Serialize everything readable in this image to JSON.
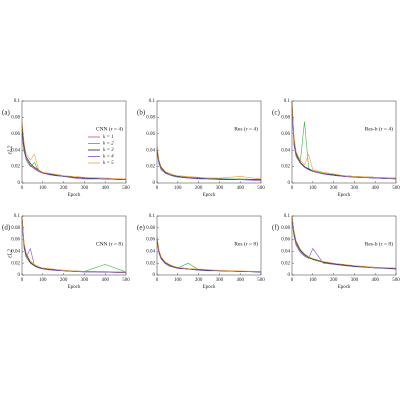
{
  "chart_data": [
    {
      "type": "line",
      "panel_label": "(a)",
      "title": "CNN (r = 4)",
      "x_label": "Epoch",
      "y_label": "εL2",
      "legend": true,
      "x": [
        0,
        10,
        20,
        40,
        60,
        80,
        100,
        150,
        200,
        250,
        300,
        400,
        500
      ],
      "xlim": [
        0,
        500
      ],
      "ylim": [
        0,
        0.1
      ],
      "xticks": [
        0,
        100,
        200,
        300,
        400,
        500
      ],
      "yticks": [
        0,
        0.02,
        0.04,
        0.06,
        0.08,
        0.1
      ],
      "series": [
        {
          "name": "k = 1",
          "color": "#e0457b",
          "values": [
            0.065,
            0.04,
            0.03,
            0.022,
            0.018,
            0.015,
            0.013,
            0.01,
            0.008,
            0.007,
            0.006,
            0.005,
            0.004
          ]
        },
        {
          "name": "k = 2",
          "color": "#3cb34a",
          "values": [
            0.06,
            0.042,
            0.028,
            0.02,
            0.025,
            0.014,
            0.012,
            0.011,
            0.009,
            0.007,
            0.006,
            0.005,
            0.004
          ]
        },
        {
          "name": "k = 3",
          "color": "#222222",
          "values": [
            0.07,
            0.045,
            0.032,
            0.024,
            0.019,
            0.016,
            0.012,
            0.01,
            0.008,
            0.007,
            0.006,
            0.005,
            0.004
          ]
        },
        {
          "name": "k = 4",
          "color": "#7b4fc9",
          "values": [
            0.058,
            0.038,
            0.03,
            0.021,
            0.017,
            0.014,
            0.012,
            0.009,
            0.008,
            0.006,
            0.005,
            0.005,
            0.004
          ]
        },
        {
          "name": "k = 5",
          "color": "#f39c3a",
          "values": [
            0.075,
            0.05,
            0.035,
            0.028,
            0.035,
            0.016,
            0.013,
            0.011,
            0.009,
            0.008,
            0.007,
            0.006,
            0.005
          ]
        }
      ]
    },
    {
      "type": "line",
      "panel_label": "(b)",
      "title": "Res (r = 4)",
      "x_label": "Epoch",
      "x": [
        0,
        10,
        20,
        40,
        60,
        80,
        100,
        150,
        200,
        250,
        300,
        400,
        500
      ],
      "xlim": [
        0,
        500
      ],
      "ylim": [
        0,
        0.1
      ],
      "xticks": [
        0,
        100,
        200,
        300,
        400,
        500
      ],
      "yticks": [
        0,
        0.02,
        0.04,
        0.06,
        0.08,
        0.1
      ],
      "series": [
        {
          "color": "#e0457b",
          "values": [
            0.04,
            0.025,
            0.018,
            0.012,
            0.01,
            0.009,
            0.008,
            0.007,
            0.006,
            0.005,
            0.005,
            0.004,
            0.004
          ]
        },
        {
          "color": "#3cb34a",
          "values": [
            0.038,
            0.024,
            0.017,
            0.013,
            0.011,
            0.009,
            0.008,
            0.007,
            0.006,
            0.006,
            0.005,
            0.005,
            0.004
          ]
        },
        {
          "color": "#222222",
          "values": [
            0.042,
            0.026,
            0.019,
            0.013,
            0.01,
            0.009,
            0.008,
            0.006,
            0.006,
            0.005,
            0.005,
            0.004,
            0.004
          ]
        },
        {
          "color": "#7b4fc9",
          "values": [
            0.036,
            0.023,
            0.016,
            0.012,
            0.01,
            0.008,
            0.007,
            0.006,
            0.005,
            0.005,
            0.004,
            0.004,
            0.003
          ]
        },
        {
          "color": "#f39c3a",
          "values": [
            0.045,
            0.028,
            0.02,
            0.014,
            0.012,
            0.01,
            0.009,
            0.008,
            0.007,
            0.006,
            0.006,
            0.008,
            0.005
          ]
        }
      ]
    },
    {
      "type": "line",
      "panel_label": "(c)",
      "title": "Res-b (r = 4)",
      "x_label": "Epoch",
      "x": [
        0,
        10,
        20,
        40,
        60,
        80,
        100,
        150,
        200,
        250,
        300,
        400,
        500
      ],
      "xlim": [
        0,
        500
      ],
      "ylim": [
        0,
        0.1
      ],
      "xticks": [
        0,
        100,
        200,
        300,
        400,
        500
      ],
      "yticks": [
        0,
        0.02,
        0.04,
        0.06,
        0.08,
        0.1
      ],
      "series": [
        {
          "color": "#e0457b",
          "values": [
            0.095,
            0.05,
            0.035,
            0.025,
            0.02,
            0.017,
            0.015,
            0.012,
            0.01,
            0.009,
            0.008,
            0.007,
            0.006
          ]
        },
        {
          "color": "#3cb34a",
          "values": [
            0.09,
            0.048,
            0.033,
            0.026,
            0.075,
            0.018,
            0.015,
            0.012,
            0.01,
            0.009,
            0.008,
            0.007,
            0.006
          ]
        },
        {
          "color": "#222222",
          "values": [
            0.1,
            0.052,
            0.036,
            0.025,
            0.02,
            0.017,
            0.014,
            0.011,
            0.01,
            0.008,
            0.007,
            0.006,
            0.005
          ]
        },
        {
          "color": "#7b4fc9",
          "values": [
            0.085,
            0.045,
            0.032,
            0.024,
            0.019,
            0.016,
            0.014,
            0.011,
            0.009,
            0.008,
            0.007,
            0.006,
            0.005
          ]
        },
        {
          "color": "#f39c3a",
          "values": [
            0.1,
            0.055,
            0.038,
            0.028,
            0.022,
            0.035,
            0.016,
            0.013,
            0.011,
            0.009,
            0.008,
            0.007,
            0.006
          ]
        }
      ]
    },
    {
      "type": "line",
      "panel_label": "(d)",
      "title": "CNN (r = 8)",
      "x_label": "Epoch",
      "y_label": "εL2",
      "x": [
        0,
        10,
        20,
        40,
        60,
        80,
        100,
        150,
        200,
        250,
        300,
        400,
        500
      ],
      "xlim": [
        0,
        500
      ],
      "ylim": [
        0,
        0.1
      ],
      "xticks": [
        0,
        100,
        200,
        300,
        400,
        500
      ],
      "yticks": [
        0,
        0.02,
        0.04,
        0.06,
        0.08,
        0.1
      ],
      "series": [
        {
          "color": "#e0457b",
          "values": [
            0.1,
            0.05,
            0.035,
            0.022,
            0.016,
            0.013,
            0.011,
            0.009,
            0.008,
            0.007,
            0.006,
            0.005,
            0.005
          ]
        },
        {
          "color": "#3cb34a",
          "values": [
            0.095,
            0.048,
            0.03,
            0.02,
            0.015,
            0.013,
            0.011,
            0.009,
            0.008,
            0.007,
            0.006,
            0.018,
            0.005
          ]
        },
        {
          "color": "#222222",
          "values": [
            0.1,
            0.052,
            0.034,
            0.021,
            0.016,
            0.013,
            0.011,
            0.009,
            0.007,
            0.006,
            0.006,
            0.005,
            0.004
          ]
        },
        {
          "color": "#7b4fc9",
          "values": [
            0.09,
            0.045,
            0.03,
            0.045,
            0.015,
            0.012,
            0.01,
            0.008,
            0.007,
            0.006,
            0.005,
            0.005,
            0.004
          ]
        },
        {
          "color": "#f39c3a",
          "values": [
            0.1,
            0.055,
            0.038,
            0.024,
            0.018,
            0.014,
            0.012,
            0.01,
            0.008,
            0.007,
            0.006,
            0.006,
            0.005
          ]
        }
      ]
    },
    {
      "type": "line",
      "panel_label": "(e)",
      "title": "Res (r = 8)",
      "x_label": "Epoch",
      "x": [
        0,
        10,
        20,
        40,
        60,
        80,
        100,
        150,
        200,
        250,
        300,
        400,
        500
      ],
      "xlim": [
        0,
        500
      ],
      "ylim": [
        0,
        0.1
      ],
      "xticks": [
        0,
        100,
        200,
        300,
        400,
        500
      ],
      "yticks": [
        0,
        0.02,
        0.04,
        0.06,
        0.08,
        0.1
      ],
      "series": [
        {
          "color": "#e0457b",
          "values": [
            0.06,
            0.04,
            0.03,
            0.02,
            0.016,
            0.014,
            0.012,
            0.01,
            0.009,
            0.008,
            0.007,
            0.006,
            0.005
          ]
        },
        {
          "color": "#3cb34a",
          "values": [
            0.058,
            0.038,
            0.028,
            0.02,
            0.016,
            0.013,
            0.012,
            0.02,
            0.009,
            0.008,
            0.007,
            0.006,
            0.005
          ]
        },
        {
          "color": "#222222",
          "values": [
            0.062,
            0.04,
            0.029,
            0.021,
            0.017,
            0.014,
            0.012,
            0.01,
            0.009,
            0.008,
            0.007,
            0.006,
            0.005
          ]
        },
        {
          "color": "#7b4fc9",
          "values": [
            0.055,
            0.036,
            0.027,
            0.019,
            0.015,
            0.013,
            0.011,
            0.01,
            0.008,
            0.007,
            0.007,
            0.006,
            0.005
          ]
        },
        {
          "color": "#f39c3a",
          "values": [
            0.065,
            0.042,
            0.031,
            0.022,
            0.018,
            0.015,
            0.013,
            0.011,
            0.01,
            0.009,
            0.008,
            0.007,
            0.006
          ]
        }
      ]
    },
    {
      "type": "line",
      "panel_label": "(f)",
      "title": "Res-b (r = 8)",
      "x_label": "Epoch",
      "x": [
        0,
        10,
        20,
        40,
        60,
        80,
        100,
        150,
        200,
        250,
        300,
        400,
        500
      ],
      "xlim": [
        0,
        500
      ],
      "ylim": [
        0,
        0.1
      ],
      "xticks": [
        0,
        100,
        200,
        300,
        400,
        500
      ],
      "yticks": [
        0,
        0.02,
        0.04,
        0.06,
        0.08,
        0.1
      ],
      "series": [
        {
          "color": "#e0457b",
          "values": [
            0.1,
            0.07,
            0.055,
            0.04,
            0.034,
            0.03,
            0.027,
            0.022,
            0.019,
            0.017,
            0.015,
            0.012,
            0.011
          ]
        },
        {
          "color": "#3cb34a",
          "values": [
            0.095,
            0.068,
            0.052,
            0.04,
            0.033,
            0.029,
            0.026,
            0.021,
            0.018,
            0.016,
            0.015,
            0.012,
            0.01
          ]
        },
        {
          "color": "#222222",
          "values": [
            0.1,
            0.072,
            0.056,
            0.042,
            0.035,
            0.03,
            0.027,
            0.022,
            0.019,
            0.017,
            0.015,
            0.013,
            0.011
          ]
        },
        {
          "color": "#7b4fc9",
          "values": [
            0.09,
            0.065,
            0.05,
            0.038,
            0.032,
            0.028,
            0.045,
            0.02,
            0.018,
            0.016,
            0.014,
            0.012,
            0.01
          ]
        },
        {
          "color": "#f39c3a",
          "values": [
            0.1,
            0.075,
            0.058,
            0.044,
            0.036,
            0.031,
            0.028,
            0.023,
            0.02,
            0.018,
            0.016,
            0.013,
            0.012
          ]
        }
      ]
    }
  ]
}
